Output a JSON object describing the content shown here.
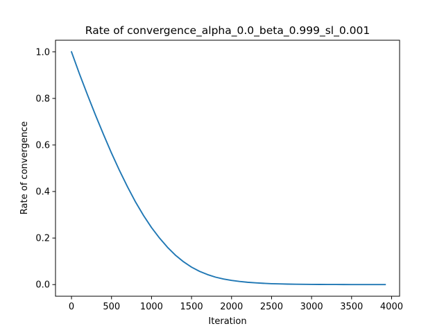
{
  "chart_data": {
    "type": "line",
    "title": "Rate of convergence_alpha_0.0_beta_0.999_sl_0.001",
    "xlabel": "Iteration",
    "ylabel": "Rate of convergence",
    "xlim": [
      -200,
      4100
    ],
    "ylim": [
      -0.05,
      1.05
    ],
    "xticks": [
      0,
      500,
      1000,
      1500,
      2000,
      2500,
      3000,
      3500,
      4000
    ],
    "yticks": [
      0.0,
      0.2,
      0.4,
      0.6,
      0.8,
      1.0
    ],
    "xtick_labels": [
      "0",
      "500",
      "1000",
      "1500",
      "2000",
      "2500",
      "3000",
      "3500",
      "4000"
    ],
    "ytick_labels": [
      "0.0",
      "0.2",
      "0.4",
      "0.6",
      "0.8",
      "1.0"
    ],
    "grid": false,
    "legend": "none",
    "series": [
      {
        "color": "#1f77b4",
        "x": [
          0,
          100,
          200,
          300,
          400,
          500,
          600,
          700,
          800,
          900,
          1000,
          1100,
          1200,
          1300,
          1400,
          1500,
          1600,
          1700,
          1800,
          1900,
          2000,
          2100,
          2200,
          2300,
          2400,
          2500,
          2600,
          2700,
          2800,
          2900,
          3000,
          3100,
          3200,
          3300,
          3400,
          3500,
          3600,
          3700,
          3800,
          3920
        ],
        "y": [
          1.0,
          0.905,
          0.815,
          0.728,
          0.645,
          0.565,
          0.49,
          0.42,
          0.355,
          0.297,
          0.245,
          0.2,
          0.16,
          0.126,
          0.098,
          0.075,
          0.057,
          0.043,
          0.032,
          0.024,
          0.018,
          0.0135,
          0.01,
          0.0074,
          0.0055,
          0.004,
          0.003,
          0.0022,
          0.0016,
          0.0012,
          0.0009,
          0.0007,
          0.0005,
          0.0004,
          0.0003,
          0.0002,
          0.00015,
          0.0001,
          8e-05,
          5e-05
        ]
      }
    ]
  }
}
